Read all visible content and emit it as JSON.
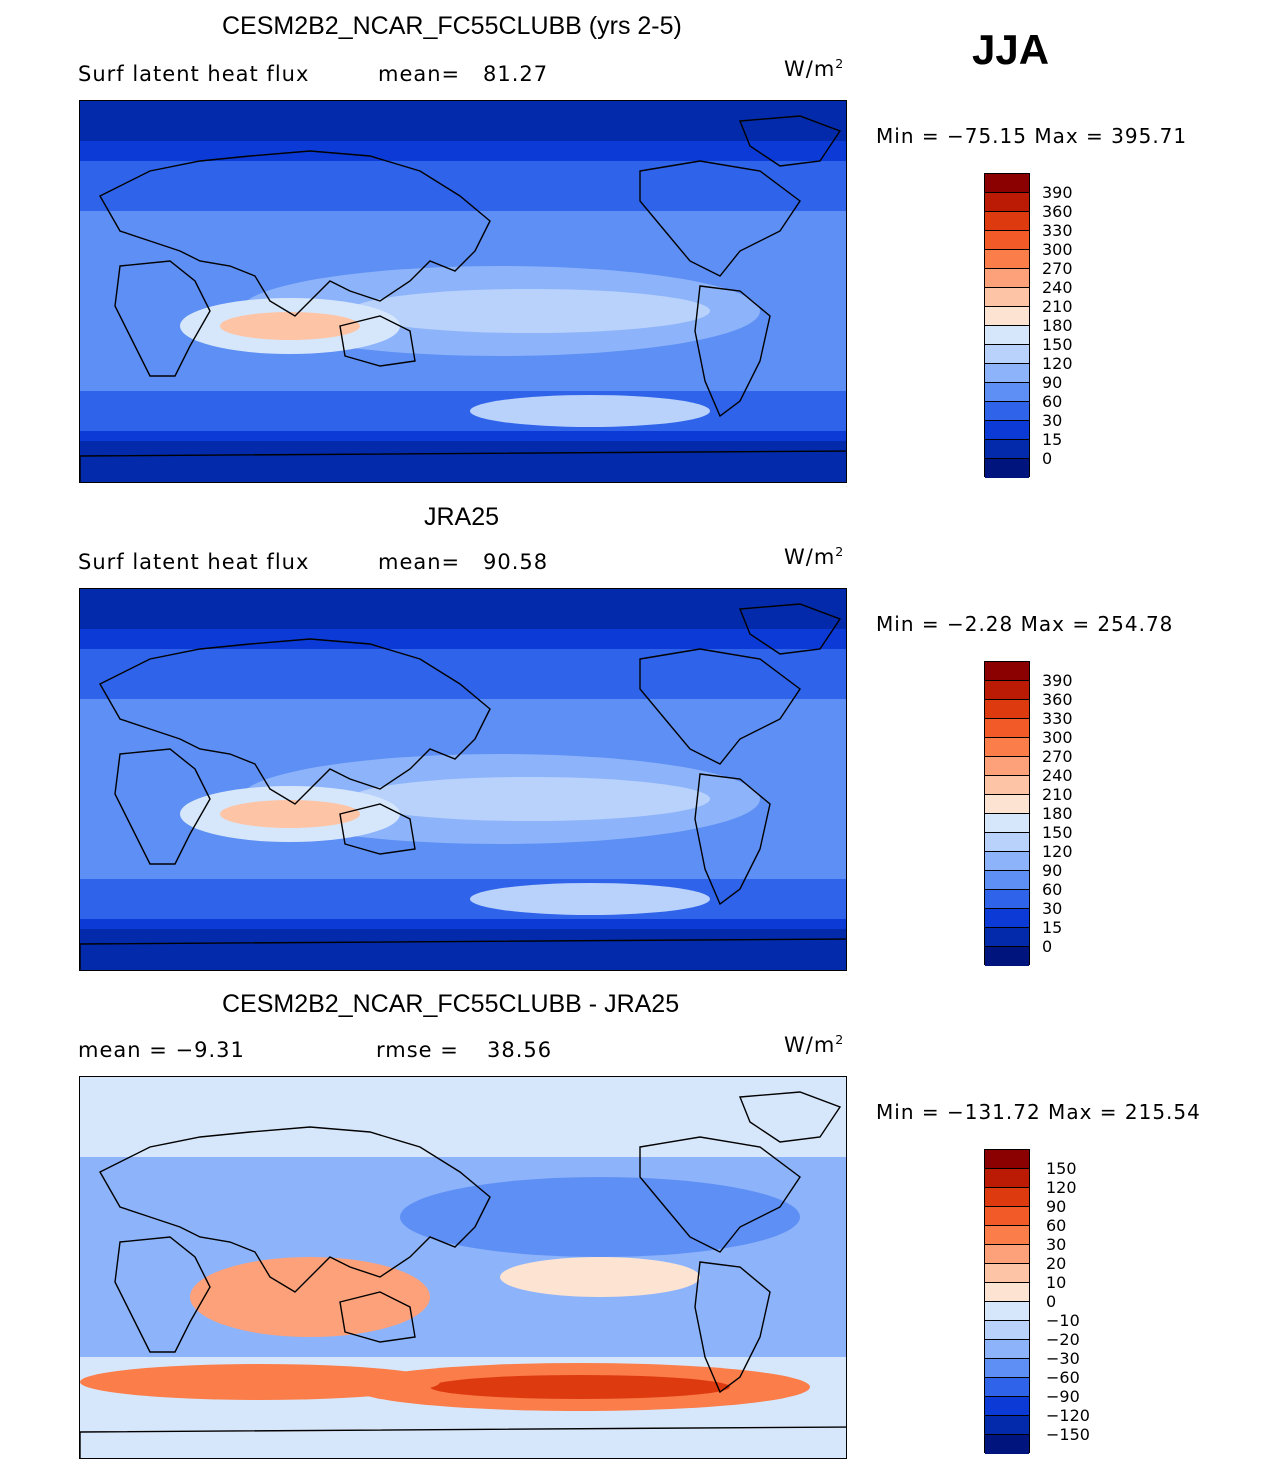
{
  "season": "JJA",
  "units_base": "W/m",
  "units_exp": "2",
  "panels": [
    {
      "title": "CESM2B2_NCAR_FC55CLUBB (yrs 2-5)",
      "left_label": "Surf latent heat flux",
      "mid_label": "mean=",
      "mid_value": "81.27",
      "minmax": "Min = −75.15 Max = 395.71",
      "levels": [
        "390",
        "360",
        "330",
        "300",
        "270",
        "240",
        "210",
        "180",
        "150",
        "120",
        "90",
        "60",
        "30",
        "15",
        "0"
      ],
      "type": "abs"
    },
    {
      "title": "JRA25",
      "left_label": "Surf latent heat flux",
      "mid_label": "mean=",
      "mid_value": "90.58",
      "minmax": "Min =  −2.28 Max = 254.78",
      "levels": [
        "390",
        "360",
        "330",
        "300",
        "270",
        "240",
        "210",
        "180",
        "150",
        "120",
        "90",
        "60",
        "30",
        "15",
        "0"
      ],
      "type": "abs"
    },
    {
      "title": "CESM2B2_NCAR_FC55CLUBB - JRA25",
      "left_label": "mean =  −9.31",
      "mid_label": "rmse =",
      "mid_value": "38.56",
      "minmax": "Min = −131.72 Max = 215.54",
      "levels": [
        "150",
        "120",
        "90",
        "60",
        "30",
        "20",
        "10",
        "0",
        "−10",
        "−20",
        "−30",
        "−60",
        "−90",
        "−120",
        "−150"
      ],
      "type": "diff"
    }
  ],
  "colors": {
    "palette": [
      "#8b0000",
      "#bb1a05",
      "#de3a0f",
      "#f25a28",
      "#fb7d4a",
      "#fca17a",
      "#fdc4a6",
      "#fde3d1",
      "#d7e7fb",
      "#b9d2fb",
      "#8db4fa",
      "#5e8ff5",
      "#2f63ea",
      "#0b3ad6",
      "#022aaa",
      "#00147d"
    ]
  }
}
